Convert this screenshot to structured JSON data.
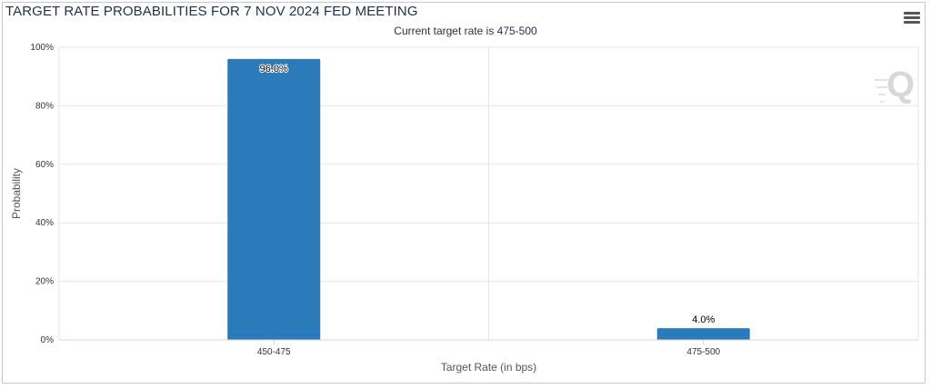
{
  "header": {
    "title": "TARGET RATE PROBABILITIES FOR 7 NOV 2024 FED MEETING",
    "subtitle": "Current target rate is 475-500",
    "menu_icon": "hamburger-menu-icon",
    "watermark_icon": "q-logo-icon"
  },
  "colors": {
    "bar": "#2b7bba",
    "grid": "#e6e6e6",
    "axis": "#ccd6eb"
  },
  "chart_data": {
    "type": "bar",
    "categories": [
      "450-475",
      "475-500"
    ],
    "values": [
      96.0,
      4.0
    ],
    "data_labels": [
      "96.0%",
      "4.0%"
    ],
    "title": "TARGET RATE PROBABILITIES FOR 7 NOV 2024 FED MEETING",
    "subtitle": "Current target rate is 475-500",
    "xlabel": "Target Rate (in bps)",
    "ylabel": "Probability",
    "ylim": [
      0,
      100
    ],
    "yticks": [
      "0%",
      "20%",
      "40%",
      "60%",
      "80%",
      "100%"
    ],
    "ytick_values": [
      0,
      20,
      40,
      60,
      80,
      100
    ],
    "grid": true,
    "legend": "none"
  }
}
